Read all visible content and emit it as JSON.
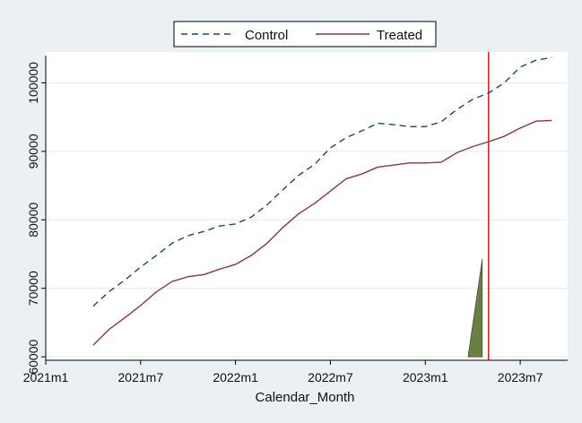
{
  "chart_data": {
    "type": "line",
    "title": "",
    "xlabel": "Calendar_Month",
    "ylabel": "",
    "grid": true,
    "legend_position": "top",
    "x_range": [
      0,
      33
    ],
    "y_range": [
      59500,
      104500
    ],
    "x_ticks": [
      {
        "label": "2021m1",
        "value": 0
      },
      {
        "label": "2021m7",
        "value": 6
      },
      {
        "label": "2022m1",
        "value": 12
      },
      {
        "label": "2022m7",
        "value": 18
      },
      {
        "label": "2023m1",
        "value": 24
      },
      {
        "label": "2023m7",
        "value": 30
      }
    ],
    "y_ticks": [
      {
        "label": "60000",
        "value": 60000
      },
      {
        "label": "70000",
        "value": 70000
      },
      {
        "label": "80000",
        "value": 80000
      },
      {
        "label": "90000",
        "value": 90000
      },
      {
        "label": "100000",
        "value": 100000
      }
    ],
    "x_months": [
      3,
      4,
      5,
      6,
      7,
      8,
      9,
      10,
      11,
      12,
      13,
      14,
      15,
      16,
      17,
      18,
      19,
      20,
      21,
      22,
      23,
      24,
      25,
      26,
      27,
      28,
      29,
      30,
      31,
      32
    ],
    "series": [
      {
        "name": "Control",
        "color": "#1a476f",
        "dash": "dashed",
        "values": [
          67400,
          69500,
          71200,
          73100,
          74800,
          76600,
          77700,
          78300,
          79100,
          79400,
          80400,
          82200,
          84400,
          86500,
          88100,
          90500,
          92000,
          93000,
          94100,
          93900,
          93600,
          93600,
          94300,
          96100,
          97600,
          98500,
          100000,
          102300,
          103300,
          103700
        ]
      },
      {
        "name": "Treated",
        "color": "#90353b",
        "dash": "solid",
        "values": [
          61700,
          64000,
          65700,
          67500,
          69500,
          71000,
          71700,
          72000,
          72800,
          73500,
          74800,
          76600,
          78900,
          80900,
          82400,
          84200,
          86000,
          86700,
          87700,
          88000,
          88300,
          88300,
          88400,
          89800,
          90700,
          91400,
          92200,
          93400,
          94400,
          94500
        ]
      }
    ],
    "vline": {
      "x": 28,
      "color": "#d7191c"
    },
    "annotation_triangle": {
      "color": "#688042",
      "points": [
        [
          26.7,
          60000
        ],
        [
          27.6,
          74300
        ],
        [
          27.6,
          60000
        ]
      ]
    }
  }
}
